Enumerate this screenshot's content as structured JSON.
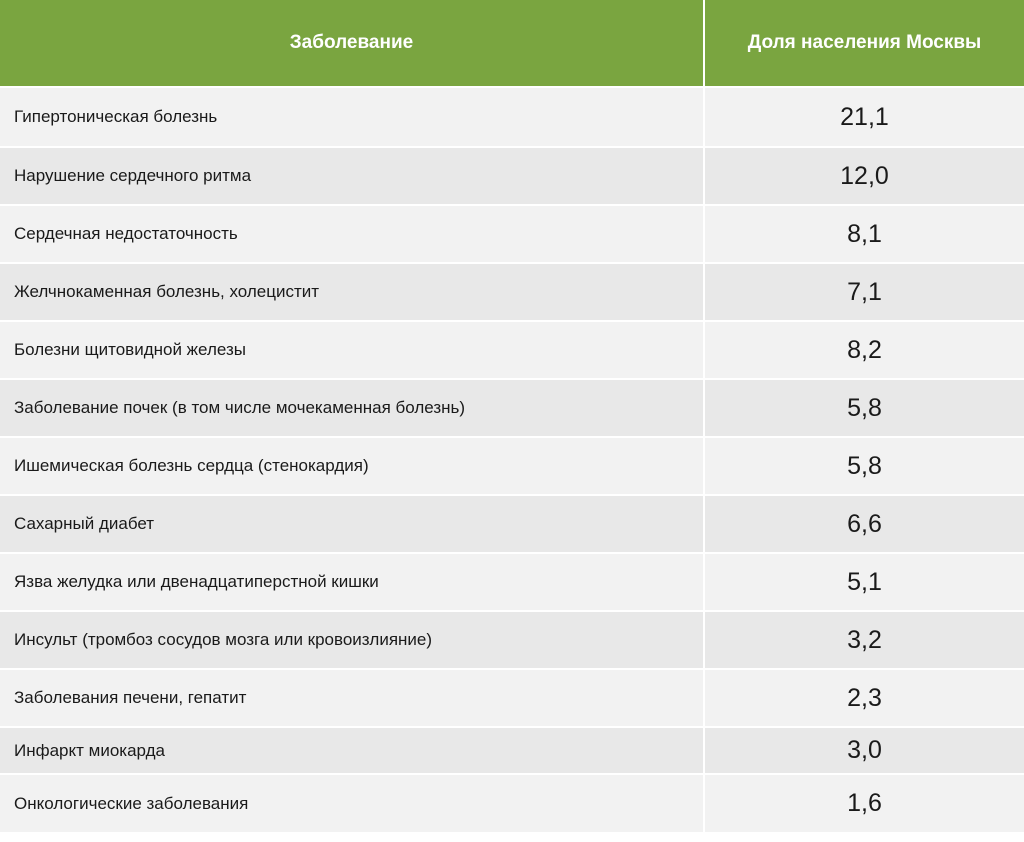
{
  "table": {
    "headers": [
      "Заболевание",
      "Доля населения Москвы"
    ],
    "accent_color": "#7aa540",
    "rows": [
      {
        "disease": "Гипертоническая болезнь",
        "share": "21,1"
      },
      {
        "disease": "Нарушение сердечного ритма",
        "share": "12,0"
      },
      {
        "disease": "Сердечная недостаточность",
        "share": "8,1"
      },
      {
        "disease": "Желчнокаменная болезнь, холецистит",
        "share": "7,1"
      },
      {
        "disease": "Болезни щитовидной железы",
        "share": "8,2"
      },
      {
        "disease": "Заболевание почек (в том числе мочекаменная болезнь)",
        "share": "5,8"
      },
      {
        "disease": "Ишемическая болезнь сердца (стенокардия)",
        "share": "5,8"
      },
      {
        "disease": "Сахарный диабет",
        "share": "6,6"
      },
      {
        "disease": "Язва желудка или двенадцатиперстной кишки",
        "share": "5,1"
      },
      {
        "disease": "Инсульт (тромбоз сосудов мозга или кровоизлияние)",
        "share": "3,2"
      },
      {
        "disease": "Заболевания печени, гепатит",
        "share": "2,3"
      },
      {
        "disease": "Инфаркт миокарда",
        "share": "3,0"
      },
      {
        "disease": "Онкологические заболевания",
        "share": "1,6"
      }
    ]
  }
}
